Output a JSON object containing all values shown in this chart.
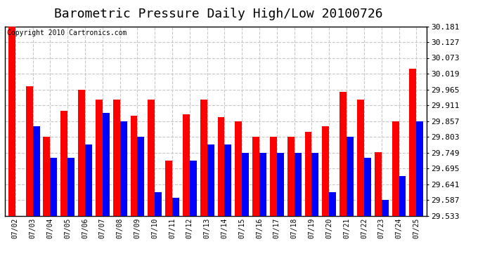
{
  "title": "Barometric Pressure Daily High/Low 20100726",
  "copyright": "Copyright 2010 Cartronics.com",
  "dates": [
    "07/02",
    "07/03",
    "07/04",
    "07/05",
    "07/06",
    "07/07",
    "07/08",
    "07/09",
    "07/10",
    "07/11",
    "07/12",
    "07/13",
    "07/14",
    "07/15",
    "07/16",
    "07/17",
    "07/18",
    "07/19",
    "07/20",
    "07/21",
    "07/22",
    "07/23",
    "07/24",
    "07/25"
  ],
  "highs": [
    30.181,
    29.977,
    29.803,
    29.892,
    29.965,
    29.93,
    29.93,
    29.875,
    29.93,
    29.722,
    29.881,
    29.93,
    29.87,
    29.857,
    29.803,
    29.803,
    29.803,
    29.82,
    29.838,
    29.957,
    29.93,
    29.75,
    29.857,
    30.035
  ],
  "lows": [
    29.533,
    29.838,
    29.73,
    29.73,
    29.776,
    29.884,
    29.857,
    29.803,
    29.614,
    29.595,
    29.722,
    29.776,
    29.776,
    29.749,
    29.749,
    29.749,
    29.749,
    29.749,
    29.614,
    29.803,
    29.73,
    29.587,
    29.668,
    29.857
  ],
  "bar_color_high": "#ff0000",
  "bar_color_low": "#0000ff",
  "bg_color": "#ffffff",
  "grid_color": "#c8c8c8",
  "yticks": [
    29.533,
    29.587,
    29.641,
    29.695,
    29.749,
    29.803,
    29.857,
    29.911,
    29.965,
    30.019,
    30.073,
    30.127,
    30.181
  ],
  "ylim_min": 29.533,
  "ylim_max": 30.181,
  "title_fontsize": 13,
  "copyright_fontsize": 7,
  "tick_fontsize": 8,
  "xtick_fontsize": 7
}
